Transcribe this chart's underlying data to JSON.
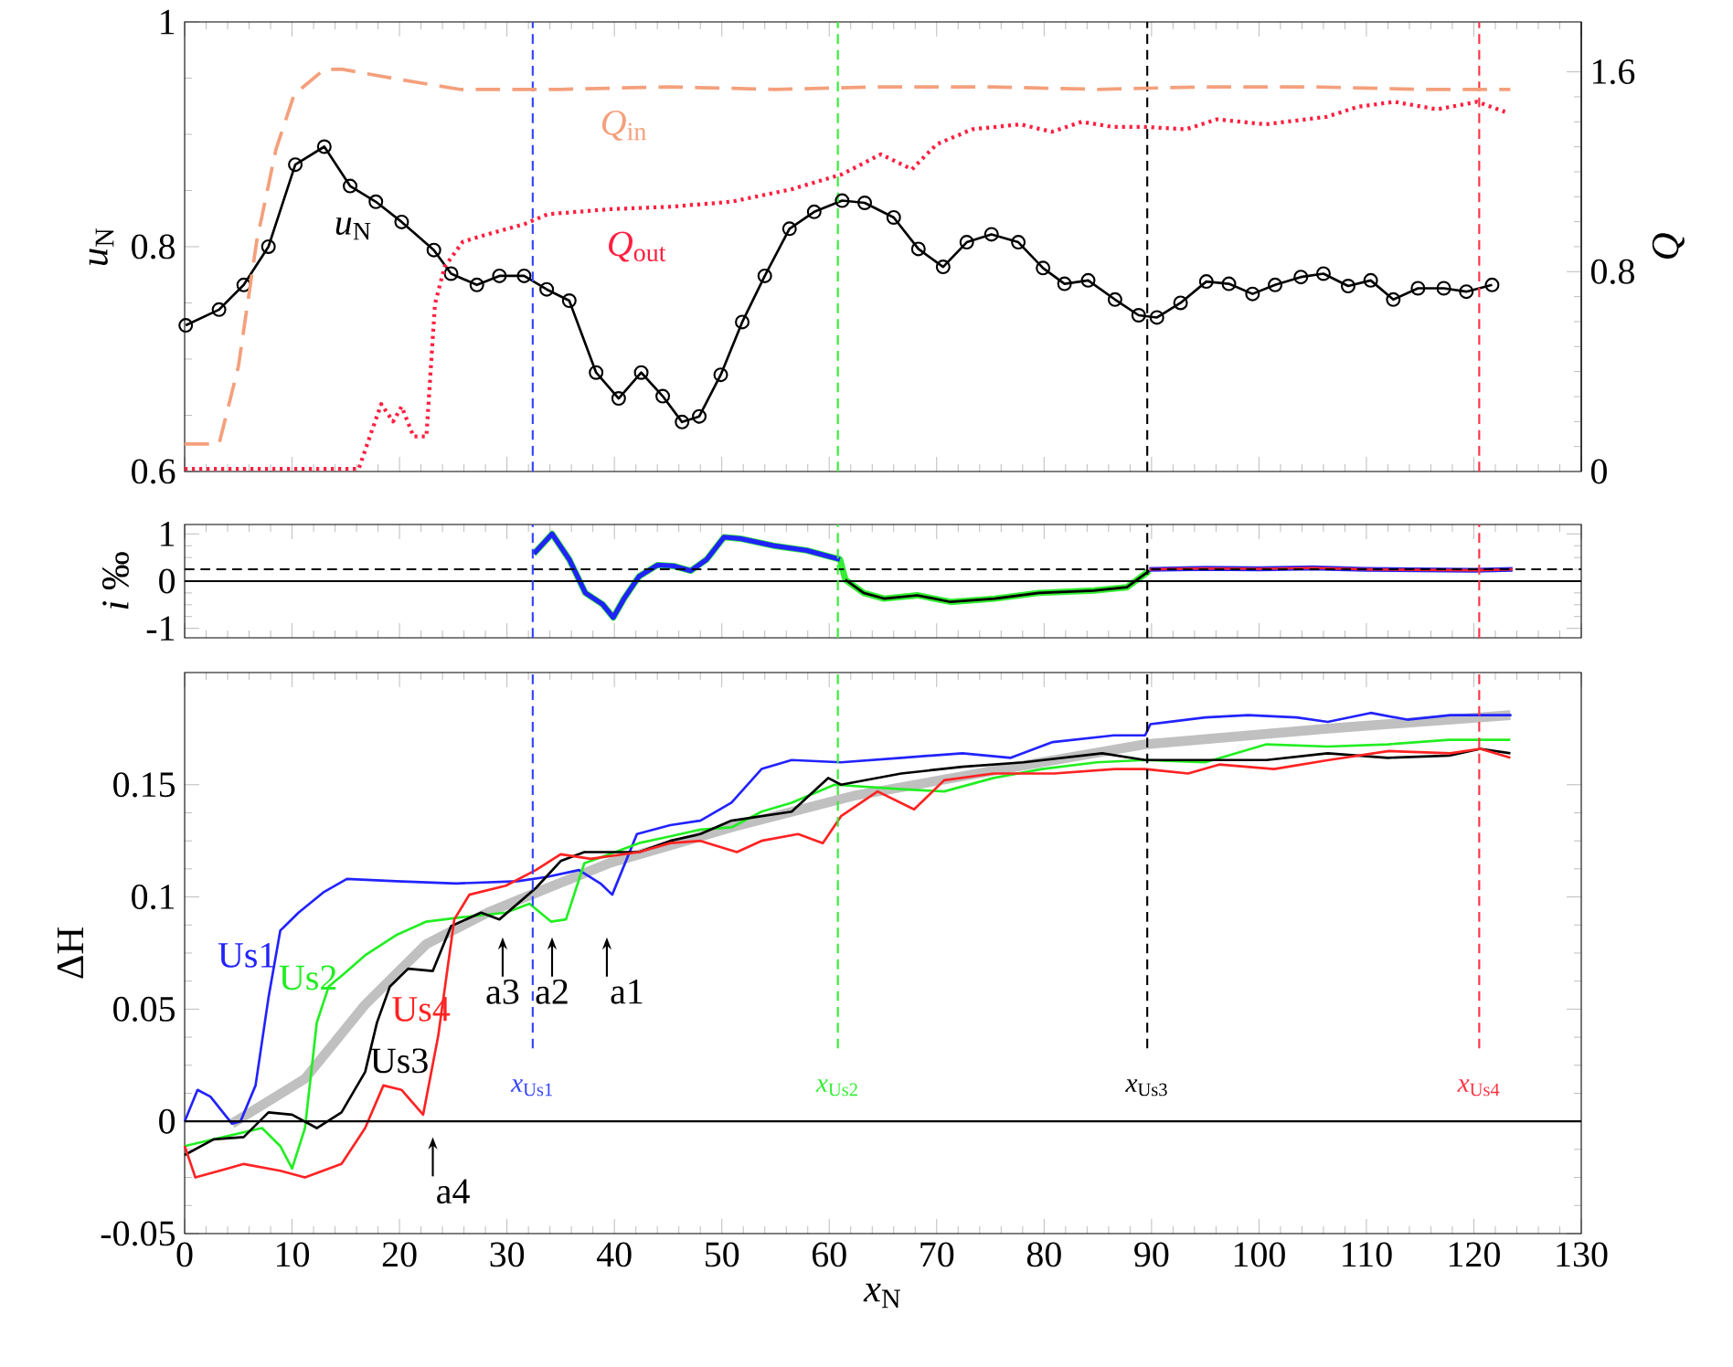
{
  "chart_data": [
    {
      "type": "line",
      "ylabel": "*u*$_{N}$",
      "y2label": "*Q*",
      "xlim": [
        0,
        130
      ],
      "ylim": [
        0.6,
        1
      ],
      "y2lim": [
        0,
        1.8
      ],
      "xticks": [
        0,
        10,
        20,
        30,
        40,
        50,
        60,
        70,
        80,
        90,
        100,
        110,
        120,
        130
      ],
      "yticks": [
        0.6,
        0.8,
        1
      ],
      "y2ticks": [
        0,
        0.8,
        1.6
      ],
      "tick_labels": "y",
      "series": [
        {
          "name": "*u*$_{N}$",
          "color": "#000000",
          "marker": "circle",
          "line_style": "solid",
          "x": [
            0.1,
            3.2,
            5.5,
            7.8,
            10.3,
            13.0,
            15.4,
            17.8,
            20.2,
            23.2,
            24.8,
            27.2,
            29.3,
            31.6,
            33.7,
            35.8,
            38.3,
            40.4,
            42.5,
            44.5,
            46.3,
            47.9,
            49.9,
            51.9,
            54.0,
            56.3,
            58.6,
            61.2,
            63.3,
            66.0,
            68.3,
            70.6,
            72.8,
            75.1,
            77.6,
            79.9,
            81.9,
            84.1,
            86.6,
            88.8,
            90.5,
            92.7,
            95.1,
            97.2,
            99.4,
            101.5,
            103.9,
            106.0,
            108.3,
            110.4,
            112.5,
            114.8,
            117.2,
            119.3,
            121.7
          ],
          "values": [
            0.73,
            0.744,
            0.766,
            0.8,
            0.873,
            0.889,
            0.854,
            0.84,
            0.822,
            0.797,
            0.776,
            0.766,
            0.774,
            0.774,
            0.762,
            0.752,
            0.688,
            0.665,
            0.688,
            0.667,
            0.644,
            0.649,
            0.686,
            0.733,
            0.774,
            0.816,
            0.831,
            0.841,
            0.839,
            0.826,
            0.798,
            0.782,
            0.804,
            0.811,
            0.804,
            0.781,
            0.767,
            0.77,
            0.753,
            0.739,
            0.737,
            0.75,
            0.769,
            0.767,
            0.758,
            0.766,
            0.773,
            0.776,
            0.765,
            0.77,
            0.753,
            0.763,
            0.763,
            0.76,
            0.766
          ]
        },
        {
          "name": "*Q*$_{in}$",
          "color": "#f4a07c",
          "axis": "y2",
          "line_style": "dashed",
          "x": [
            0,
            3.2,
            5.0,
            6.7,
            8.5,
            10.2,
            13,
            14.7,
            19.9,
            25.6,
            35,
            45,
            55,
            65,
            75,
            85,
            95,
            105,
            115,
            123.4
          ],
          "values": [
            0.11,
            0.11,
            0.42,
            0.92,
            1.29,
            1.51,
            1.61,
            1.61,
            1.57,
            1.53,
            1.53,
            1.54,
            1.53,
            1.54,
            1.54,
            1.53,
            1.54,
            1.54,
            1.53,
            1.53
          ]
        },
        {
          "name": "*Q*$_{out}$",
          "color": "#ff2040",
          "axis": "y2",
          "line_style": "dotted",
          "x": [
            0,
            16.2,
            17.4,
            18.3,
            19.4,
            20.2,
            21.3,
            22.5,
            23.3,
            24.2,
            25.9,
            28.2,
            31.6,
            33.8,
            39.5,
            45.2,
            50.9,
            56.5,
            61.2,
            64.8,
            67.7,
            70,
            73.3,
            77.8,
            80.7,
            83.5,
            86.3,
            89.2,
            93.2,
            96.1,
            100.6,
            106.3,
            109.2,
            112.6,
            116.6,
            120.3,
            122.9
          ],
          "values": [
            0.01,
            0.01,
            0.16,
            0.27,
            0.2,
            0.26,
            0.14,
            0.14,
            0.67,
            0.82,
            0.92,
            0.95,
            0.99,
            1.03,
            1.05,
            1.06,
            1.08,
            1.13,
            1.19,
            1.27,
            1.21,
            1.31,
            1.37,
            1.39,
            1.36,
            1.4,
            1.38,
            1.38,
            1.37,
            1.41,
            1.39,
            1.42,
            1.46,
            1.48,
            1.45,
            1.48,
            1.44
          ]
        }
      ],
      "ref_lines": [
        {
          "axis": "x",
          "value": 32.4,
          "color": "#3344ff",
          "line_style": "dashed"
        },
        {
          "axis": "x",
          "value": 60.8,
          "color": "#33ee33",
          "line_style": "dashed"
        },
        {
          "axis": "x",
          "value": 89.6,
          "color": "#000000",
          "line_style": "dashed"
        },
        {
          "axis": "x",
          "value": 120.5,
          "color": "#ff3344",
          "line_style": "dashed"
        }
      ]
    },
    {
      "type": "line",
      "ylabel": "*i* ‰",
      "xlim": [
        0,
        130
      ],
      "ylim": [
        -1.2,
        1.2
      ],
      "xticks": [
        0,
        10,
        20,
        30,
        40,
        50,
        60,
        70,
        80,
        90,
        100,
        110,
        120,
        130
      ],
      "yticks": [
        -1,
        0,
        1
      ],
      "tick_labels": "y",
      "series": [
        {
          "color": "#33ee33",
          "x": [
            32.5,
            34.2,
            35.8,
            37.3,
            38.9,
            39.9,
            40.9,
            42.3,
            44.0,
            45.5,
            47.1,
            48.6,
            50.2,
            51.7,
            54.8,
            57.9,
            61.0,
            61.5,
            63.2,
            65.1,
            68.2,
            71.3,
            75.4,
            79.5,
            84.6,
            87.7,
            89.8
          ],
          "values": [
            0.58,
            1.0,
            0.46,
            -0.25,
            -0.49,
            -0.77,
            -0.37,
            0.1,
            0.34,
            0.32,
            0.22,
            0.46,
            0.93,
            0.9,
            0.75,
            0.65,
            0.46,
            0.03,
            -0.25,
            -0.37,
            -0.3,
            -0.44,
            -0.37,
            -0.25,
            -0.2,
            -0.13,
            0.22
          ]
        },
        {
          "color": "#000000",
          "x": [
            61.5,
            63.2,
            65.1,
            68.2,
            71.3,
            75.4,
            79.5,
            84.6,
            87.7,
            89.8
          ],
          "values": [
            0.03,
            -0.25,
            -0.37,
            -0.3,
            -0.44,
            -0.37,
            -0.25,
            -0.2,
            -0.13,
            0.22
          ]
        },
        {
          "color": "#2222ff",
          "x": [
            32.5,
            34.2,
            35.8,
            37.3,
            38.9,
            39.9,
            40.9,
            42.3,
            44.0,
            45.5,
            47.1,
            48.6,
            50.2,
            51.7,
            54.8,
            57.9,
            61.0,
            75,
            89.8,
            95,
            100,
            105,
            110,
            115,
            120,
            123.6
          ],
          "values": [
            0.58,
            1.0,
            0.46,
            -0.25,
            -0.49,
            -0.77,
            -0.37,
            0.1,
            0.34,
            0.32,
            0.22,
            0.46,
            0.93,
            0.9,
            0.75,
            0.65,
            0.46,
            null,
            0.25,
            0.27,
            0.26,
            0.28,
            0.25,
            0.24,
            0.23,
            0.25
          ]
        },
        {
          "color": "#ff2222",
          "x": [
            89.8,
            95,
            100,
            105,
            110,
            115,
            120,
            123.6
          ],
          "values": [
            0.25,
            0.27,
            0.26,
            0.28,
            0.25,
            0.24,
            0.23,
            0.25
          ]
        }
      ],
      "ref_lines": [
        {
          "axis": "y",
          "value": 0,
          "color": "#000000",
          "line_style": "solid"
        },
        {
          "axis": "y",
          "value": 0.25,
          "color": "#000000",
          "line_style": "dashed"
        },
        {
          "axis": "x",
          "value": 32.4,
          "color": "#3344ff",
          "line_style": "dashed"
        },
        {
          "axis": "x",
          "value": 60.8,
          "color": "#33ee33",
          "line_style": "dashed"
        },
        {
          "axis": "x",
          "value": 89.6,
          "color": "#000000",
          "line_style": "dashed"
        },
        {
          "axis": "x",
          "value": 120.5,
          "color": "#ff3344",
          "line_style": "dashed"
        }
      ]
    },
    {
      "type": "line",
      "xlabel": "*x*$_{N}$",
      "ylabel": "ΔH",
      "xlim": [
        0,
        130
      ],
      "ylim": [
        -0.05,
        0.2
      ],
      "xticks": [
        0,
        10,
        20,
        30,
        40,
        50,
        60,
        70,
        80,
        90,
        100,
        110,
        120,
        130
      ],
      "yticks": [
        -0.05,
        0,
        0.05,
        0.1,
        0.15
      ],
      "series": [
        {
          "color": "#c0c0c0",
          "x": [
            4.4,
            11.2,
            16.8,
            22.5,
            28.2,
            33.8,
            39.5,
            50.9,
            62.2,
            75,
            89.4,
            106.4,
            123.4
          ],
          "values": [
            -0.001,
            0.019,
            0.052,
            0.079,
            0.093,
            0.104,
            0.115,
            0.131,
            0.145,
            0.156,
            0.168,
            0.175,
            0.181
          ]
        },
        {
          "name": "Us1",
          "color": "#2222ff",
          "x": [
            0,
            1.2,
            2.4,
            4.4,
            5.2,
            6.6,
            7.8,
            8.9,
            10.6,
            12.9,
            15.1,
            19.7,
            25.3,
            31.0,
            33.8,
            36.7,
            38.7,
            39.8,
            42.1,
            45.2,
            48.0,
            50.9,
            53.7,
            56.5,
            61.1,
            66.7,
            72.4,
            76.9,
            80.8,
            86.5,
            89.4,
            89.9,
            95.0,
            99.0,
            103.5,
            106.4,
            110.4,
            113.8,
            117.8,
            121.2,
            123.5
          ],
          "values": [
            0,
            0.014,
            0.011,
            -0.001,
            0,
            0.016,
            0.055,
            0.085,
            0.093,
            0.102,
            0.108,
            0.107,
            0.106,
            0.107,
            0.109,
            0.112,
            0.106,
            0.101,
            0.128,
            0.132,
            0.134,
            0.142,
            0.157,
            0.161,
            0.16,
            0.162,
            0.164,
            0.162,
            0.169,
            0.172,
            0.172,
            0.177,
            0.18,
            0.181,
            0.18,
            0.178,
            0.182,
            0.179,
            0.181,
            0.181,
            0.181
          ]
        },
        {
          "name": "Us2",
          "color": "#22ee22",
          "x": [
            0,
            2.7,
            7.2,
            8.9,
            10.0,
            11.2,
            12.3,
            13.4,
            14.9,
            16.8,
            19.7,
            22.5,
            25.9,
            29.9,
            32.1,
            34.1,
            35.5,
            37.2,
            39.5,
            42.3,
            45.2,
            48.0,
            50.9,
            53.7,
            56.5,
            60.5,
            66.7,
            70.7,
            75.3,
            79.8,
            84.9,
            89.4,
            95.0,
            100.7,
            106.4,
            112.0,
            117.7,
            123.4
          ],
          "values": [
            -0.011,
            -0.008,
            -0.003,
            -0.011,
            -0.021,
            -0.003,
            0.044,
            0.06,
            0.066,
            0.074,
            0.083,
            0.089,
            0.091,
            0.093,
            0.097,
            0.089,
            0.09,
            0.115,
            0.119,
            0.124,
            0.127,
            0.13,
            0.131,
            0.138,
            0.142,
            0.15,
            0.148,
            0.147,
            0.153,
            0.157,
            0.16,
            0.161,
            0.16,
            0.168,
            0.167,
            0.168,
            0.17,
            0.17
          ]
        },
        {
          "name": "Us3",
          "color": "#000000",
          "x": [
            0,
            2.7,
            5.5,
            7.8,
            10.0,
            12.3,
            14.6,
            16.8,
            17.9,
            19.1,
            20.8,
            23.1,
            24.8,
            27.6,
            29.3,
            31.0,
            32.7,
            35.0,
            37.2,
            39.5,
            42.3,
            45.2,
            48.0,
            50.9,
            56.5,
            59.9,
            61.1,
            66.7,
            72.4,
            78.1,
            85.4,
            89.4,
            95.0,
            100.7,
            106.4,
            112.0,
            117.7,
            120.6,
            123.4
          ],
          "values": [
            -0.015,
            -0.008,
            -0.007,
            0.004,
            0.003,
            -0.003,
            0.004,
            0.022,
            0.044,
            0.06,
            0.068,
            0.067,
            0.087,
            0.093,
            0.09,
            0.097,
            0.104,
            0.116,
            0.12,
            0.12,
            0.12,
            0.125,
            0.128,
            0.134,
            0.138,
            0.153,
            0.15,
            0.155,
            0.158,
            0.16,
            0.164,
            0.161,
            0.161,
            0.161,
            0.164,
            0.162,
            0.163,
            0.166,
            0.164
          ]
        },
        {
          "name": "Us4",
          "color": "#ff2222",
          "x": [
            0,
            1.0,
            5.5,
            8.9,
            11.2,
            14.6,
            16.8,
            18.5,
            20.2,
            22.2,
            23.6,
            25.1,
            26.5,
            29.9,
            32.7,
            35.0,
            37.8,
            42.3,
            45.2,
            48.0,
            51.4,
            53.7,
            57.1,
            59.4,
            61.1,
            64.5,
            67.9,
            70.7,
            75.3,
            80.9,
            86.6,
            89.4,
            93.4,
            96.3,
            101.4,
            106.5,
            112.1,
            117.8,
            120.6,
            123.4
          ],
          "values": [
            -0.011,
            -0.025,
            -0.019,
            -0.022,
            -0.025,
            -0.019,
            -0.003,
            0.016,
            0.014,
            0.003,
            0.038,
            0.09,
            0.101,
            0.105,
            0.112,
            0.119,
            0.117,
            0.12,
            0.124,
            0.125,
            0.12,
            0.125,
            0.128,
            0.124,
            0.136,
            0.147,
            0.139,
            0.152,
            0.155,
            0.155,
            0.157,
            0.157,
            0.155,
            0.159,
            0.157,
            0.161,
            0.165,
            0.164,
            0.166,
            0.162
          ]
        }
      ],
      "ref_lines": [
        {
          "axis": "y",
          "value": 0,
          "color": "#000000",
          "line_style": "solid"
        },
        {
          "axis": "x",
          "value": 32.4,
          "color": "#3344ff",
          "line_style": "dashed",
          "label": "*x*$_{Us1}$"
        },
        {
          "axis": "x",
          "value": 60.8,
          "color": "#33ee33",
          "line_style": "dashed",
          "label": "*x*$_{Us2}$"
        },
        {
          "axis": "x",
          "value": 89.6,
          "color": "#000000",
          "line_style": "dashed",
          "label": "*x*$_{Us3}$"
        },
        {
          "axis": "x",
          "value": 120.5,
          "color": "#ff3344",
          "line_style": "dashed",
          "label": "*x*$_{Us4}$"
        }
      ],
      "annotations": [
        "a1",
        "a2",
        "a3",
        "a4"
      ]
    }
  ]
}
